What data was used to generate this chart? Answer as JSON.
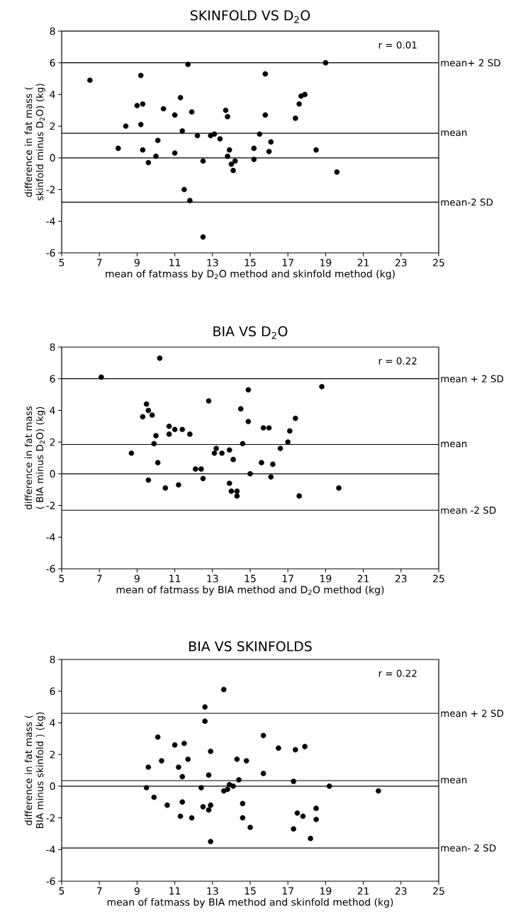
{
  "chart_data": [
    {
      "type": "scatter",
      "title": "SKINFOLD VS D$_{2}$O",
      "xlabel": "mean of fatmass by D$_{2}$O method and skinfold method (kg)",
      "ylabel": "difference in fat mass ( skinfold minus D$_{2}$O) (kg)",
      "annotations": [
        "r = 0.01"
      ],
      "marker": "circle",
      "color": "#000000",
      "x": [
        6.5,
        8.0,
        8.4,
        9.0,
        9.2,
        9.3,
        9.2,
        9.3,
        9.6,
        10.0,
        10.1,
        10.4,
        11.0,
        11.0,
        11.3,
        11.4,
        11.5,
        11.7,
        11.8,
        11.9,
        12.2,
        12.5,
        12.5,
        12.9,
        13.1,
        13.4,
        13.7,
        13.8,
        13.9,
        13.8,
        14.0,
        14.1,
        14.2,
        15.2,
        15.2,
        15.8,
        15.8,
        15.5,
        16.1,
        16.0,
        17.4,
        17.6,
        17.7,
        17.9,
        19.0,
        18.5,
        19.6
      ],
      "values": [
        4.9,
        0.6,
        2.0,
        3.3,
        5.2,
        3.4,
        2.1,
        0.5,
        -0.3,
        0.1,
        1.1,
        3.1,
        2.7,
        0.3,
        3.8,
        1.7,
        -2.0,
        5.9,
        -2.7,
        2.9,
        1.4,
        -0.2,
        -5.0,
        1.4,
        1.5,
        1.2,
        3.0,
        2.6,
        0.5,
        0.1,
        -0.4,
        -0.8,
        -0.2,
        0.6,
        -0.1,
        5.3,
        2.7,
        1.5,
        1.0,
        0.4,
        2.5,
        3.4,
        3.9,
        4.0,
        6.0,
        0.5,
        -0.9
      ],
      "xlim": [
        5,
        25
      ],
      "xticks": [
        5,
        7,
        9,
        11,
        13,
        15,
        17,
        19,
        21,
        23,
        25
      ],
      "ylim": [
        -6,
        8
      ],
      "yticks": [
        -6,
        -4,
        -2,
        0,
        2,
        4,
        6,
        8
      ],
      "ref_lines": [
        {
          "axis": "y",
          "value": 6.0,
          "label": "mean+ 2 SD"
        },
        {
          "axis": "y",
          "value": 1.55,
          "label": "mean"
        },
        {
          "axis": "y",
          "value": 0,
          "label": null
        },
        {
          "axis": "y",
          "value": -2.8,
          "label": "mean-2 SD"
        }
      ]
    },
    {
      "type": "scatter",
      "title": "BIA VS D$_{2}$O",
      "xlabel": "mean of fatmass by BIA method and D$_{2}$O method (kg)",
      "ylabel": "difference in fat mass ( BIA minus D$_{2}$O) (kg)",
      "annotations": [
        "r = 0.22"
      ],
      "marker": "circle",
      "color": "#000000",
      "x": [
        7.1,
        10.2,
        8.7,
        9.3,
        9.5,
        9.6,
        9.8,
        10.0,
        9.9,
        10.1,
        9.6,
        10.7,
        10.7,
        11.0,
        11.4,
        11.8,
        10.5,
        11.2,
        12.1,
        12.4,
        12.5,
        12.8,
        13.1,
        13.2,
        13.5,
        13.9,
        14.1,
        13.9,
        14.0,
        14.3,
        14.3,
        14.5,
        14.6,
        14.9,
        14.9,
        15.0,
        15.7,
        16.0,
        15.6,
        16.2,
        16.1,
        16.6,
        17.0,
        17.1,
        17.4,
        17.6,
        18.8,
        19.7
      ],
      "values": [
        6.1,
        7.3,
        1.3,
        3.6,
        4.4,
        4.0,
        3.7,
        2.4,
        1.9,
        0.7,
        -0.4,
        3.0,
        2.5,
        2.8,
        2.8,
        2.5,
        -0.9,
        -0.7,
        0.3,
        0.3,
        -0.3,
        4.6,
        1.3,
        1.6,
        1.3,
        1.5,
        0.9,
        -0.6,
        -1.1,
        -1.1,
        -1.4,
        4.1,
        1.9,
        5.3,
        3.3,
        0.0,
        2.9,
        2.9,
        0.7,
        0.6,
        -0.2,
        1.6,
        2.0,
        2.7,
        3.5,
        -1.4,
        5.5,
        -0.9
      ],
      "xlim": [
        5,
        25
      ],
      "xticks": [
        5,
        7,
        9,
        11,
        13,
        15,
        17,
        19,
        21,
        23,
        25
      ],
      "ylim": [
        -6,
        8
      ],
      "yticks": [
        -6,
        -4,
        -2,
        0,
        2,
        4,
        6,
        8
      ],
      "ref_lines": [
        {
          "axis": "y",
          "value": 6.0,
          "label": "mean + 2 SD"
        },
        {
          "axis": "y",
          "value": 1.85,
          "label": "mean"
        },
        {
          "axis": "y",
          "value": 0,
          "label": null
        },
        {
          "axis": "y",
          "value": -2.3,
          "label": "mean -2 SD"
        }
      ]
    },
    {
      "type": "scatter",
      "title": "BIA VS SKINFOLDS",
      "xlabel": "mean of fatmass by BIA method and skinfold method (kg)",
      "ylabel": "difference in fat mass ( BIA minus skinfold ) (kg)",
      "annotations": [
        "r = 0.22"
      ],
      "marker": "circle",
      "color": "#000000",
      "x": [
        13.6,
        12.6,
        12.6,
        10.1,
        11.0,
        11.5,
        12.9,
        10.3,
        11.7,
        9.6,
        11.2,
        11.4,
        12.8,
        14.3,
        14.8,
        14.4,
        9.5,
        9.9,
        12.4,
        13.6,
        13.8,
        13.9,
        14.1,
        15.7,
        16.5,
        17.4,
        17.9,
        15.7,
        17.3,
        19.2,
        21.8,
        10.6,
        11.4,
        11.3,
        11.9,
        12.5,
        12.9,
        12.8,
        12.9,
        14.6,
        14.6,
        15.0,
        17.3,
        17.5,
        17.8,
        18.2,
        18.5,
        18.5
      ],
      "values": [
        6.1,
        5.0,
        4.1,
        3.1,
        2.6,
        2.7,
        2.2,
        1.6,
        1.7,
        1.2,
        1.2,
        0.6,
        0.7,
        1.7,
        1.6,
        0.4,
        -0.1,
        -0.7,
        -0.1,
        -0.3,
        -0.2,
        0.1,
        0.0,
        3.2,
        2.4,
        2.3,
        2.5,
        0.8,
        0.3,
        0.0,
        -0.3,
        -1.2,
        -1.0,
        -1.9,
        -2.0,
        -1.3,
        -1.2,
        -1.5,
        -3.5,
        -1.1,
        -2.0,
        -2.6,
        -2.7,
        -1.7,
        -1.9,
        -3.3,
        -1.4,
        -2.1
      ],
      "xlim": [
        5,
        25
      ],
      "xticks": [
        5,
        7,
        9,
        11,
        13,
        15,
        17,
        19,
        21,
        23,
        25
      ],
      "ylim": [
        -6,
        8
      ],
      "yticks": [
        -6,
        -4,
        -2,
        0,
        2,
        4,
        6,
        8
      ],
      "ref_lines": [
        {
          "axis": "y",
          "value": 4.6,
          "label": "mean + 2 SD"
        },
        {
          "axis": "y",
          "value": 0.35,
          "label": "mean"
        },
        {
          "axis": "y",
          "value": 0,
          "label": null
        },
        {
          "axis": "y",
          "value": -3.9,
          "label": "mean- 2 SD"
        }
      ]
    }
  ]
}
